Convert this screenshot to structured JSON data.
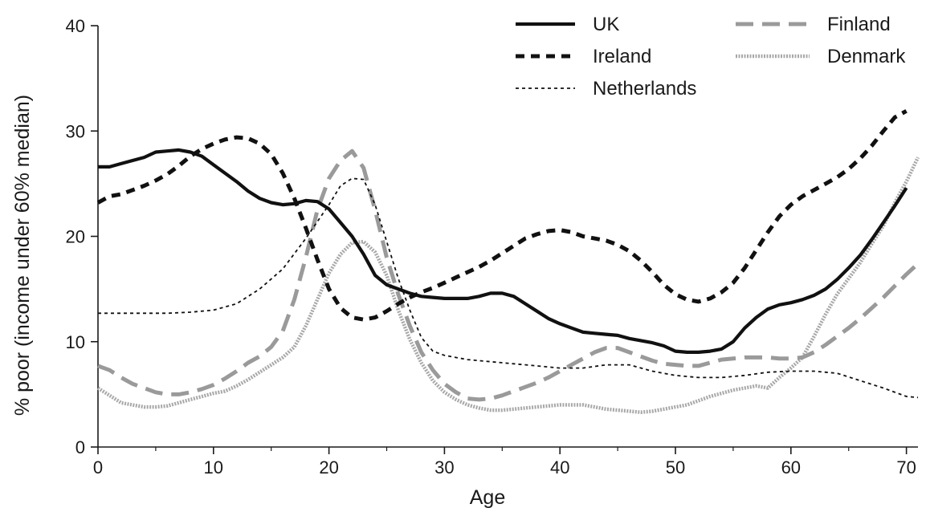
{
  "chart_data": {
    "type": "line",
    "title": "",
    "xlabel": "Age",
    "ylabel": "% poor (income under 60% median)",
    "xlim": [
      0,
      71
    ],
    "ylim": [
      0,
      40
    ],
    "xticks": [
      0,
      10,
      20,
      30,
      40,
      50,
      60,
      70
    ],
    "yticks": [
      0,
      10,
      20,
      30,
      40
    ],
    "grid": false,
    "legend_position": "top-right",
    "series": [
      {
        "name": "UK",
        "style": "solid-thick",
        "color": "#111111",
        "points": [
          [
            0,
            26.6
          ],
          [
            1,
            26.6
          ],
          [
            2,
            26.9
          ],
          [
            3,
            27.2
          ],
          [
            4,
            27.5
          ],
          [
            5,
            28
          ],
          [
            6,
            28.1
          ],
          [
            7,
            28.2
          ],
          [
            8,
            28
          ],
          [
            9,
            27.6
          ],
          [
            10,
            26.8
          ],
          [
            11,
            26
          ],
          [
            12,
            25.2
          ],
          [
            13,
            24.3
          ],
          [
            14,
            23.6
          ],
          [
            15,
            23.2
          ],
          [
            16,
            23
          ],
          [
            17,
            23.1
          ],
          [
            18,
            23.4
          ],
          [
            19,
            23.3
          ],
          [
            20,
            22.6
          ],
          [
            21,
            21.3
          ],
          [
            22,
            20
          ],
          [
            23,
            18.3
          ],
          [
            24,
            16.3
          ],
          [
            25,
            15.4
          ],
          [
            26,
            15
          ],
          [
            27,
            14.6
          ],
          [
            28,
            14.3
          ],
          [
            29,
            14.2
          ],
          [
            30,
            14.1
          ],
          [
            31,
            14.1
          ],
          [
            32,
            14.1
          ],
          [
            33,
            14.3
          ],
          [
            34,
            14.6
          ],
          [
            35,
            14.6
          ],
          [
            36,
            14.3
          ],
          [
            37,
            13.6
          ],
          [
            38,
            12.9
          ],
          [
            39,
            12.2
          ],
          [
            40,
            11.7
          ],
          [
            41,
            11.3
          ],
          [
            42,
            10.9
          ],
          [
            43,
            10.8
          ],
          [
            44,
            10.7
          ],
          [
            45,
            10.6
          ],
          [
            46,
            10.3
          ],
          [
            47,
            10.1
          ],
          [
            48,
            9.9
          ],
          [
            49,
            9.6
          ],
          [
            50,
            9.1
          ],
          [
            51,
            9
          ],
          [
            52,
            9
          ],
          [
            53,
            9.1
          ],
          [
            54,
            9.3
          ],
          [
            55,
            10
          ],
          [
            56,
            11.3
          ],
          [
            57,
            12.3
          ],
          [
            58,
            13.1
          ],
          [
            59,
            13.5
          ],
          [
            60,
            13.7
          ],
          [
            61,
            14
          ],
          [
            62,
            14.4
          ],
          [
            63,
            15
          ],
          [
            64,
            15.9
          ],
          [
            65,
            17
          ],
          [
            66,
            18.2
          ],
          [
            67,
            19.7
          ],
          [
            68,
            21.3
          ],
          [
            69,
            22.9
          ],
          [
            70,
            24.6
          ]
        ]
      },
      {
        "name": "Ireland",
        "style": "dashed-thick",
        "color": "#111111",
        "points": [
          [
            0,
            23.2
          ],
          [
            1,
            23.8
          ],
          [
            2,
            24
          ],
          [
            3,
            24.4
          ],
          [
            4,
            24.8
          ],
          [
            5,
            25.3
          ],
          [
            6,
            25.9
          ],
          [
            7,
            26.7
          ],
          [
            8,
            27.6
          ],
          [
            9,
            28.3
          ],
          [
            10,
            28.8
          ],
          [
            11,
            29.2
          ],
          [
            12,
            29.4
          ],
          [
            13,
            29.3
          ],
          [
            14,
            28.8
          ],
          [
            15,
            27.8
          ],
          [
            16,
            26
          ],
          [
            17,
            23.6
          ],
          [
            18,
            20.8
          ],
          [
            19,
            17.8
          ],
          [
            20,
            15
          ],
          [
            21,
            13.2
          ],
          [
            22,
            12.3
          ],
          [
            23,
            12.1
          ],
          [
            24,
            12.3
          ],
          [
            25,
            12.9
          ],
          [
            26,
            13.6
          ],
          [
            27,
            14.2
          ],
          [
            28,
            14.7
          ],
          [
            29,
            15.1
          ],
          [
            30,
            15.6
          ],
          [
            31,
            16.1
          ],
          [
            32,
            16.6
          ],
          [
            33,
            17.1
          ],
          [
            34,
            17.7
          ],
          [
            35,
            18.4
          ],
          [
            36,
            19.1
          ],
          [
            37,
            19.8
          ],
          [
            38,
            20.2
          ],
          [
            39,
            20.5
          ],
          [
            40,
            20.6
          ],
          [
            41,
            20.4
          ],
          [
            42,
            20
          ],
          [
            43,
            19.8
          ],
          [
            44,
            19.6
          ],
          [
            45,
            19.2
          ],
          [
            46,
            18.6
          ],
          [
            47,
            17.7
          ],
          [
            48,
            16.6
          ],
          [
            49,
            15.4
          ],
          [
            50,
            14.5
          ],
          [
            51,
            14
          ],
          [
            52,
            13.8
          ],
          [
            53,
            14.1
          ],
          [
            54,
            14.7
          ],
          [
            55,
            15.6
          ],
          [
            56,
            17
          ],
          [
            57,
            18.7
          ],
          [
            58,
            20.4
          ],
          [
            59,
            21.9
          ],
          [
            60,
            23
          ],
          [
            61,
            23.8
          ],
          [
            62,
            24.4
          ],
          [
            63,
            25
          ],
          [
            64,
            25.6
          ],
          [
            65,
            26.4
          ],
          [
            66,
            27.4
          ],
          [
            67,
            28.6
          ],
          [
            68,
            30
          ],
          [
            69,
            31.3
          ],
          [
            70,
            31.9
          ]
        ]
      },
      {
        "name": "Netherlands",
        "style": "dotted-thin",
        "color": "#111111",
        "points": [
          [
            0,
            12.7
          ],
          [
            2,
            12.7
          ],
          [
            4,
            12.7
          ],
          [
            6,
            12.7
          ],
          [
            8,
            12.8
          ],
          [
            10,
            13
          ],
          [
            12,
            13.6
          ],
          [
            14,
            15
          ],
          [
            16,
            16.9
          ],
          [
            18,
            19.8
          ],
          [
            20,
            23
          ],
          [
            21,
            24.8
          ],
          [
            22,
            25.5
          ],
          [
            23,
            25.4
          ],
          [
            24,
            23
          ],
          [
            25,
            19.5
          ],
          [
            26,
            16
          ],
          [
            27,
            13
          ],
          [
            28,
            10.4
          ],
          [
            29,
            9.1
          ],
          [
            30,
            8.7
          ],
          [
            32,
            8.3
          ],
          [
            34,
            8.1
          ],
          [
            36,
            7.9
          ],
          [
            38,
            7.7
          ],
          [
            40,
            7.5
          ],
          [
            42,
            7.5
          ],
          [
            44,
            7.8
          ],
          [
            46,
            7.8
          ],
          [
            48,
            7.2
          ],
          [
            50,
            6.8
          ],
          [
            52,
            6.6
          ],
          [
            54,
            6.6
          ],
          [
            56,
            6.8
          ],
          [
            58,
            7.1
          ],
          [
            60,
            7.2
          ],
          [
            62,
            7.2
          ],
          [
            64,
            7
          ],
          [
            66,
            6.3
          ],
          [
            68,
            5.6
          ],
          [
            70,
            4.8
          ],
          [
            71,
            4.7
          ]
        ]
      },
      {
        "name": "Finland",
        "style": "dashed-grey",
        "color": "#9a9a9a",
        "points": [
          [
            0,
            7.7
          ],
          [
            1,
            7.3
          ],
          [
            2,
            6.6
          ],
          [
            3,
            6
          ],
          [
            4,
            5.6
          ],
          [
            5,
            5.2
          ],
          [
            6,
            5
          ],
          [
            7,
            5
          ],
          [
            8,
            5.2
          ],
          [
            9,
            5.5
          ],
          [
            10,
            5.9
          ],
          [
            11,
            6.5
          ],
          [
            12,
            7.2
          ],
          [
            13,
            8
          ],
          [
            14,
            8.6
          ],
          [
            15,
            9.5
          ],
          [
            16,
            11
          ],
          [
            17,
            14
          ],
          [
            18,
            18
          ],
          [
            19,
            22.5
          ],
          [
            20,
            25.5
          ],
          [
            21,
            27.2
          ],
          [
            22,
            28.1
          ],
          [
            23,
            26.5
          ],
          [
            24,
            22.5
          ],
          [
            25,
            18
          ],
          [
            26,
            14.5
          ],
          [
            27,
            11.5
          ],
          [
            28,
            9
          ],
          [
            29,
            7.3
          ],
          [
            30,
            6
          ],
          [
            31,
            5.2
          ],
          [
            32,
            4.6
          ],
          [
            33,
            4.5
          ],
          [
            34,
            4.6
          ],
          [
            35,
            4.9
          ],
          [
            36,
            5.3
          ],
          [
            37,
            5.7
          ],
          [
            38,
            6.1
          ],
          [
            39,
            6.6
          ],
          [
            40,
            7.2
          ],
          [
            41,
            7.8
          ],
          [
            42,
            8.4
          ],
          [
            43,
            9
          ],
          [
            44,
            9.4
          ],
          [
            45,
            9.4
          ],
          [
            46,
            9
          ],
          [
            47,
            8.6
          ],
          [
            48,
            8.2
          ],
          [
            49,
            7.9
          ],
          [
            50,
            7.8
          ],
          [
            51,
            7.7
          ],
          [
            52,
            7.7
          ],
          [
            53,
            8
          ],
          [
            54,
            8.3
          ],
          [
            55,
            8.4
          ],
          [
            56,
            8.5
          ],
          [
            57,
            8.5
          ],
          [
            58,
            8.5
          ],
          [
            59,
            8.4
          ],
          [
            60,
            8.4
          ],
          [
            61,
            8.5
          ],
          [
            62,
            9
          ],
          [
            63,
            9.7
          ],
          [
            64,
            10.5
          ],
          [
            65,
            11.3
          ],
          [
            66,
            12.2
          ],
          [
            67,
            13.2
          ],
          [
            68,
            14.2
          ],
          [
            69,
            15.3
          ],
          [
            70,
            16.4
          ],
          [
            71,
            17.4
          ]
        ]
      },
      {
        "name": "Denmark",
        "style": "dotted-grey",
        "color": "#a8a8a8",
        "points": [
          [
            0,
            5.6
          ],
          [
            1,
            4.9
          ],
          [
            2,
            4.2
          ],
          [
            3,
            4
          ],
          [
            4,
            3.8
          ],
          [
            5,
            3.8
          ],
          [
            6,
            3.9
          ],
          [
            7,
            4.2
          ],
          [
            8,
            4.5
          ],
          [
            9,
            4.8
          ],
          [
            10,
            5.1
          ],
          [
            11,
            5.3
          ],
          [
            12,
            5.8
          ],
          [
            13,
            6.4
          ],
          [
            14,
            7.1
          ],
          [
            15,
            7.8
          ],
          [
            16,
            8.5
          ],
          [
            17,
            9.5
          ],
          [
            18,
            11.5
          ],
          [
            19,
            14
          ],
          [
            20,
            16.5
          ],
          [
            21,
            18.3
          ],
          [
            22,
            19.4
          ],
          [
            23,
            19.5
          ],
          [
            24,
            18.5
          ],
          [
            25,
            16.3
          ],
          [
            26,
            13
          ],
          [
            27,
            10.2
          ],
          [
            28,
            8
          ],
          [
            29,
            6.3
          ],
          [
            30,
            5.2
          ],
          [
            31,
            4.5
          ],
          [
            32,
            4
          ],
          [
            33,
            3.7
          ],
          [
            34,
            3.5
          ],
          [
            35,
            3.5
          ],
          [
            36,
            3.6
          ],
          [
            37,
            3.7
          ],
          [
            38,
            3.8
          ],
          [
            39,
            3.9
          ],
          [
            40,
            4
          ],
          [
            41,
            4
          ],
          [
            42,
            4
          ],
          [
            43,
            3.8
          ],
          [
            44,
            3.6
          ],
          [
            45,
            3.5
          ],
          [
            46,
            3.4
          ],
          [
            47,
            3.3
          ],
          [
            48,
            3.4
          ],
          [
            49,
            3.6
          ],
          [
            50,
            3.8
          ],
          [
            51,
            4
          ],
          [
            52,
            4.4
          ],
          [
            53,
            4.8
          ],
          [
            54,
            5.1
          ],
          [
            55,
            5.4
          ],
          [
            56,
            5.6
          ],
          [
            57,
            5.8
          ],
          [
            58,
            5.6
          ],
          [
            59,
            6.6
          ],
          [
            60,
            7.5
          ],
          [
            61,
            8.5
          ],
          [
            62,
            10.5
          ],
          [
            63,
            12.6
          ],
          [
            64,
            14.5
          ],
          [
            65,
            16
          ],
          [
            66,
            17.5
          ],
          [
            67,
            19.3
          ],
          [
            68,
            21
          ],
          [
            69,
            23.2
          ],
          [
            70,
            25.2
          ],
          [
            71,
            27.5
          ]
        ]
      }
    ]
  }
}
